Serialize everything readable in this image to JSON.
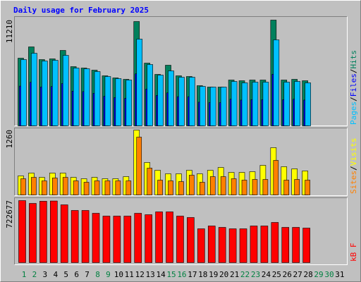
{
  "title": "Daily usage for February 2025",
  "chart_data": [
    {
      "type": "bar",
      "ylim": [
        0,
        11210
      ],
      "yticks": [
        11210
      ],
      "legend_separator": "/",
      "series": [
        {
          "name": "Hits",
          "color": "#00805c",
          "values": [
            7174,
            8370,
            7025,
            7100,
            7996,
            6277,
            6128,
            5904,
            5306,
            5082,
            4932,
            11060,
            6651,
            5455,
            6427,
            5306,
            5231,
            4260,
            4110,
            4110,
            4857,
            4783,
            4857,
            4857,
            11210,
            4857,
            4932,
            4783,
            null,
            null,
            null
          ]
        },
        {
          "name": "Files",
          "color": "#0000ff",
          "values": [
            4215,
            4618,
            4125,
            4170,
            4484,
            3677,
            3632,
            3452,
            3139,
            3004,
            2914,
            5515,
            3901,
            3229,
            3497,
            3094,
            3094,
            2511,
            2466,
            2466,
            2825,
            2735,
            2780,
            2780,
            5470,
            2780,
            2825,
            2735,
            null,
            null,
            null
          ]
        },
        {
          "name": "Pages",
          "color": "#00c0ff",
          "values": [
            7025,
            7697,
            6875,
            6950,
            7473,
            6128,
            6053,
            5754,
            5231,
            5007,
            4857,
            9192,
            6502,
            5381,
            5829,
            5156,
            5156,
            4185,
            4110,
            4110,
            4708,
            4559,
            4633,
            4633,
            9117,
            4633,
            4708,
            4559,
            null,
            null,
            null
          ]
        }
      ]
    },
    {
      "type": "bar",
      "ylim": [
        0,
        1260
      ],
      "yticks": [
        1260
      ],
      "legend_separator": "/",
      "series": [
        {
          "name": "Visits",
          "color": "#ffff00",
          "values": [
            370,
            425,
            342,
            425,
            425,
            342,
            315,
            342,
            315,
            315,
            356,
            1260,
            630,
            479,
            411,
            411,
            479,
            411,
            479,
            534,
            438,
            438,
            452,
            575,
            918,
            548,
            507,
            466,
            null,
            null,
            null
          ]
        },
        {
          "name": "Sites",
          "color": "#ff8000",
          "values": [
            315,
            342,
            274,
            329,
            342,
            274,
            247,
            274,
            274,
            274,
            274,
            1123,
            521,
            288,
            274,
            260,
            384,
            247,
            356,
            356,
            315,
            288,
            301,
            301,
            671,
            288,
            301,
            288,
            null,
            null,
            null
          ]
        }
      ]
    },
    {
      "type": "bar",
      "ylim": [
        0,
        722677
      ],
      "yticks": [
        722677
      ],
      "legend_separator": "/",
      "categories": [
        "1",
        "2",
        "3",
        "4",
        "5",
        "6",
        "7",
        "8",
        "9",
        "10",
        "11",
        "12",
        "13",
        "14",
        "15",
        "16",
        "17",
        "18",
        "19",
        "20",
        "21",
        "22",
        "23",
        "24",
        "25",
        "26",
        "27",
        "28",
        "29",
        "30",
        "31"
      ],
      "category_colors": [
        "#008040",
        "#008040",
        "#000000",
        "#000000",
        "#000000",
        "#000000",
        "#000000",
        "#008040",
        "#008040",
        "#000000",
        "#000000",
        "#000000",
        "#000000",
        "#000000",
        "#008040",
        "#008040",
        "#000000",
        "#000000",
        "#000000",
        "#000000",
        "#000000",
        "#008040",
        "#008040",
        "#000000",
        "#000000",
        "#000000",
        "#000000",
        "#000000",
        "#008040",
        "#008040",
        "#000000"
      ],
      "series": [
        {
          "name": "kB F",
          "color": "#ff0000",
          "values": [
            722677,
            689800,
            715000,
            718000,
            673400,
            607700,
            607700,
            574800,
            542000,
            542000,
            542000,
            574800,
            558400,
            591300,
            591300,
            542000,
            525600,
            394200,
            427000,
            410600,
            394200,
            394200,
            427000,
            427000,
            468100,
            410600,
            410600,
            402400,
            null,
            null,
            null
          ]
        }
      ]
    }
  ]
}
